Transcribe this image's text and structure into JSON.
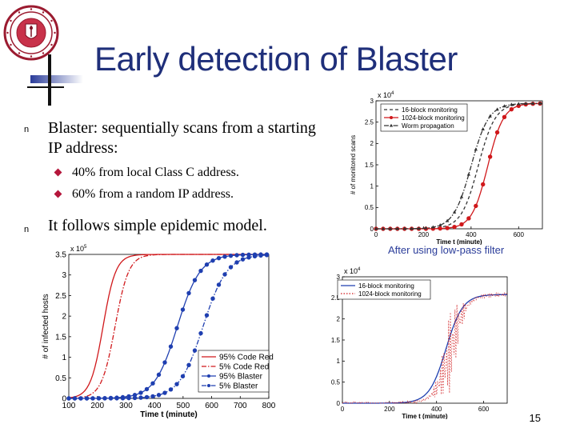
{
  "slide": {
    "title": "Early detection of Blaster",
    "bullets": [
      {
        "text": "Blaster: sequentially scans from a starting IP address:",
        "line1": "Blaster: sequentially scans from a starting",
        "line2": "IP address:",
        "sub": [
          "40% from local Class C address.",
          "60% from a random IP address."
        ]
      },
      {
        "text": "It follows simple epidemic model."
      }
    ],
    "caption": "After using low-pass filter",
    "page_number": "15",
    "colors": {
      "title": "#1f2f7a",
      "accent": "#b5163b",
      "caption": "#2b3d9a"
    }
  },
  "chart_data": [
    {
      "type": "line",
      "xlabel": "Time t (minute)",
      "ylabel": "# of infected hosts",
      "scale_note": "x 10^5",
      "xlim": [
        100,
        800
      ],
      "ylim": [
        0,
        3.5
      ],
      "xticks": [
        100,
        200,
        300,
        400,
        500,
        600,
        700,
        800
      ],
      "yticks": [
        0,
        0.5,
        1,
        1.5,
        2,
        2.5,
        3,
        3.5
      ],
      "legend_position": "bottom-right",
      "series": [
        {
          "name": "95% Code Red",
          "style": "solid",
          "color": "#d0181b",
          "marker": "none",
          "midpoint": 220,
          "k": 0.045
        },
        {
          "name": "5% Code Red",
          "style": "dashdot",
          "color": "#d0181b",
          "marker": "none",
          "midpoint": 262,
          "k": 0.042
        },
        {
          "name": "95% Blaster",
          "style": "solid",
          "color": "#1f3fb0",
          "marker": "circle",
          "midpoint": 480,
          "k": 0.025
        },
        {
          "name": "5% Blaster",
          "style": "dashdot",
          "color": "#1f3fb0",
          "marker": "circle",
          "midpoint": 570,
          "k": 0.024
        }
      ]
    },
    {
      "type": "line",
      "xlabel": "Time t (minute)",
      "ylabel": "# of monitored scans",
      "scale_note": "x 10^4",
      "xlim": [
        0,
        700
      ],
      "ylim": [
        0,
        3
      ],
      "xticks": [
        0,
        200,
        400,
        600
      ],
      "yticks": [
        0,
        0.5,
        1,
        1.5,
        2,
        2.5,
        3
      ],
      "legend_position": "top-left",
      "series": [
        {
          "name": "16-block monitoring",
          "style": "dashed",
          "color": "#333333",
          "marker": "none",
          "midpoint": 430,
          "k": 0.028
        },
        {
          "name": "1024-block monitoring",
          "style": "solid",
          "color": "#d0181b",
          "marker": "circle",
          "midpoint": 470,
          "k": 0.03
        },
        {
          "name": "Worm propagation",
          "style": "dashdot",
          "color": "#333333",
          "marker": "triangle",
          "midpoint": 400,
          "k": 0.027
        }
      ]
    },
    {
      "type": "line",
      "xlabel": "Time t (minute)",
      "ylabel": "",
      "scale_note": "x 10^4",
      "xlim": [
        0,
        700
      ],
      "ylim": [
        0,
        3
      ],
      "xticks": [
        0,
        200,
        400,
        600
      ],
      "yticks": [
        0,
        0.5,
        1,
        1.5,
        2,
        2.5,
        3
      ],
      "legend_position": "top-left",
      "series": [
        {
          "name": "16-block monitoring",
          "style": "solid",
          "color": "#1f3fb0",
          "marker": "none",
          "midpoint": 440,
          "k": 0.028
        },
        {
          "name": "1024-block monitoring",
          "style": "dotted",
          "color": "#d0181b",
          "marker": "none",
          "midpoint": 460,
          "k": 0.03
        }
      ]
    }
  ]
}
